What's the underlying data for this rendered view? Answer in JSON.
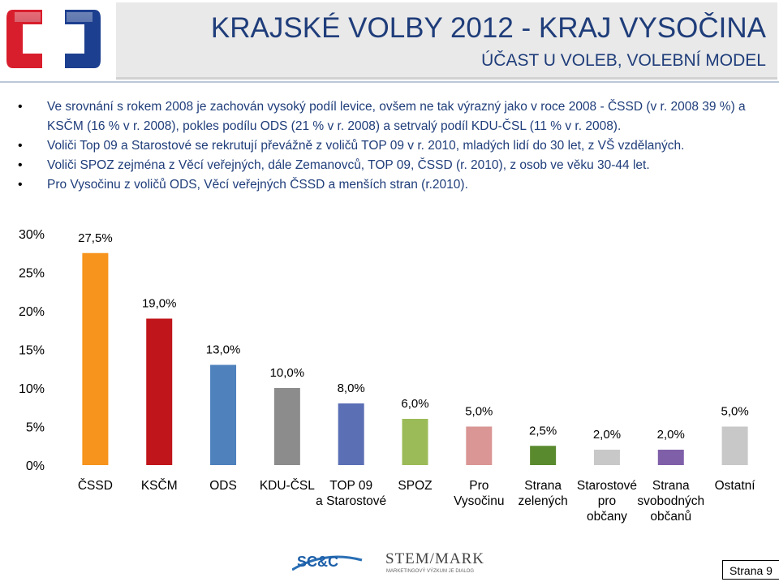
{
  "header": {
    "title": "KRAJSKÉ VOLBY 2012 - KRAJ VYSOČINA",
    "subtitle": "ÚČAST U VOLEB, VOLEBNÍ MODEL"
  },
  "bullets": [
    "Ve srovnání s rokem 2008 je zachován vysoký podíl levice, ovšem ne tak výrazný jako v roce 2008 - ČSSD (v r. 2008 39 %) a KSČM (16 % v r. 2008), pokles podílu ODS (21 % v r. 2008) a setrvalý podíl KDU-ČSL (11 % v r. 2008).",
    "Voliči Top 09 a Starostové se rekrutují převážně z voličů TOP 09 v r. 2010, mladých lidí do 30 let, z VŠ vzdělaných.",
    "Voliči SPOZ zejména z Věcí veřejných, dále Zemanovců, TOP 09, ČSSD (r. 2010), z osob ve věku 30-44 let.",
    "Pro Vysočinu z voličů ODS, Věcí veřejných ČSSD a menších stran (r.2010)."
  ],
  "chart_data": {
    "type": "bar",
    "categories": [
      [
        "ČSSD"
      ],
      [
        "KSČM"
      ],
      [
        "ODS"
      ],
      [
        "KDU-ČSL"
      ],
      [
        "TOP 09",
        "a Starostové"
      ],
      [
        "SPOZ"
      ],
      [
        "Pro",
        "Vysočinu"
      ],
      [
        "Strana",
        "zelených"
      ],
      [
        "Starostové",
        "pro",
        "občany"
      ],
      [
        "Strana",
        "svobodných",
        "občanů"
      ],
      [
        "Ostatní"
      ]
    ],
    "values": [
      27.5,
      19.0,
      13.0,
      10.0,
      8.0,
      6.0,
      5.0,
      2.5,
      2.0,
      2.0,
      5.0
    ],
    "data_labels": [
      "27,5%",
      "19,0%",
      "13,0%",
      "10,0%",
      "8,0%",
      "6,0%",
      "5,0%",
      "2,5%",
      "2,0%",
      "2,0%",
      "5,0%"
    ],
    "colors": [
      "#f7941d",
      "#c0161b",
      "#4f81bd",
      "#8c8c8c",
      "#5b6fb5",
      "#9bbb59",
      "#d99694",
      "#5a8a2e",
      "#c8c8c8",
      "#7f5fa8",
      "#c8c8c8"
    ],
    "ylim": [
      0,
      30
    ],
    "yticks": [
      "0%",
      "5%",
      "10%",
      "15%",
      "20%",
      "25%",
      "30%"
    ],
    "grid": false
  },
  "footer": {
    "logo_left": "SC&C",
    "logo_right": "STEM/MARK",
    "logo_right_tagline": "MARKETINGOVÝ VÝZKUM JE DIALOG",
    "page_label": "Strana 9"
  }
}
